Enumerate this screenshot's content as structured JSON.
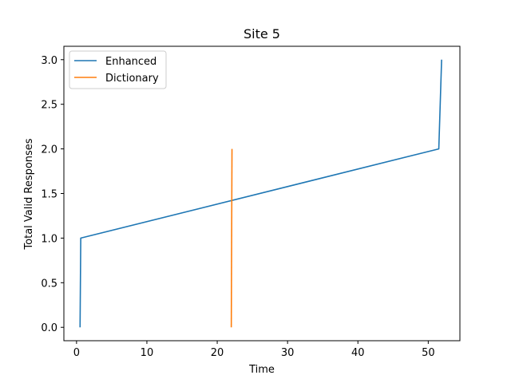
{
  "chart_data": {
    "type": "line",
    "title": "Site 5",
    "xlabel": "Time",
    "ylabel": "Total Valid Responses",
    "xlim": [
      -1.8,
      54.5
    ],
    "ylim": [
      -0.15,
      3.15
    ],
    "xticks": [
      0,
      10,
      20,
      30,
      40,
      50
    ],
    "yticks": [
      0.0,
      0.5,
      1.0,
      1.5,
      2.0,
      2.5,
      3.0
    ],
    "xtick_labels": [
      "0",
      "10",
      "20",
      "30",
      "40",
      "50"
    ],
    "ytick_labels": [
      "0.0",
      "0.5",
      "1.0",
      "1.5",
      "2.0",
      "2.5",
      "3.0"
    ],
    "grid": false,
    "legend_position": "top-left",
    "series": [
      {
        "name": "Enhanced",
        "color": "#1f77b4",
        "x": [
          0.5,
          0.6,
          51.5,
          51.9
        ],
        "y": [
          0.0,
          1.0,
          2.0,
          3.0
        ]
      },
      {
        "name": "Dictionary",
        "color": "#ff7f0e",
        "x": [
          22.0,
          22.1
        ],
        "y": [
          0.0,
          2.0
        ]
      }
    ]
  }
}
